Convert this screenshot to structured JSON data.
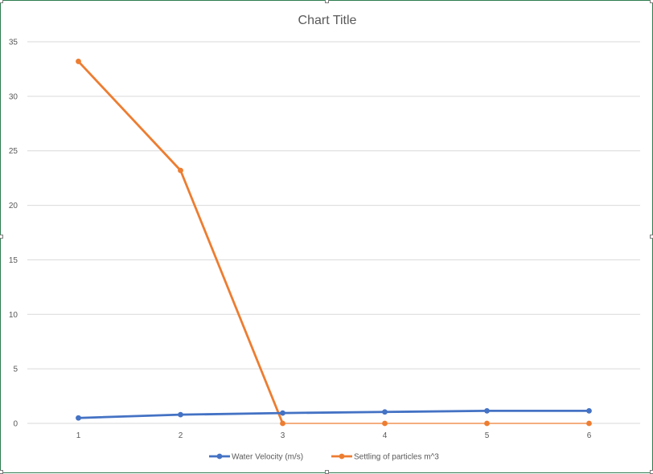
{
  "chart_data": {
    "type": "line",
    "title": "Chart Title",
    "xlabel": "",
    "ylabel": "",
    "x": [
      1,
      2,
      3,
      4,
      5,
      6
    ],
    "ylim": [
      0,
      35
    ],
    "yticks": [
      0,
      5,
      10,
      15,
      20,
      25,
      30,
      35
    ],
    "grid": true,
    "legend_position": "bottom",
    "series": [
      {
        "name": "Water Velocity (m/s)",
        "color": "#4472C4",
        "values": [
          0.5,
          0.8,
          0.95,
          1.05,
          1.15,
          1.15
        ]
      },
      {
        "name": "Settling of particles m^3",
        "color": "#ED7D31",
        "values": [
          33.2,
          23.2,
          0,
          0,
          0,
          0
        ]
      }
    ]
  }
}
